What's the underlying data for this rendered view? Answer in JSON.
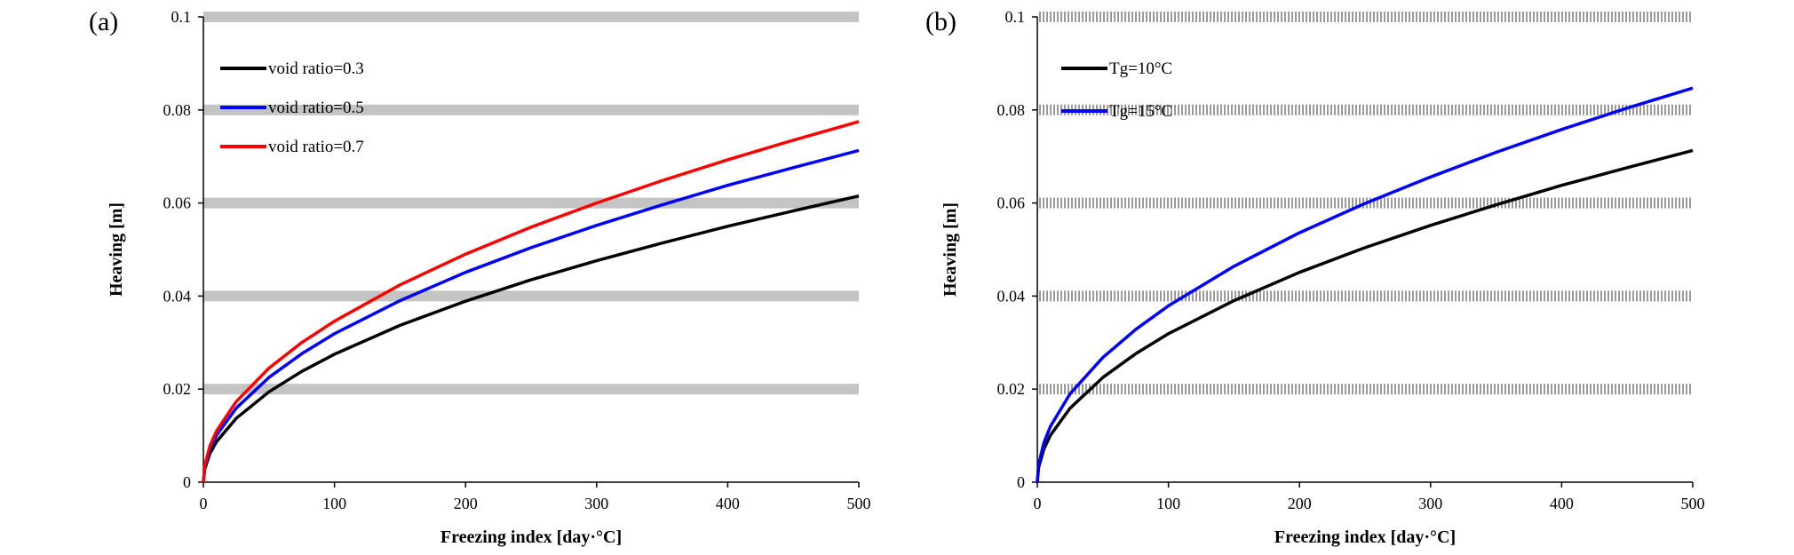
{
  "chart_data": [
    {
      "panel_label": "(a)",
      "type": "line",
      "xlabel": "Freezing index [day·°C]",
      "ylabel": "Heaving [m]",
      "xlim": [
        0,
        500
      ],
      "ylim": [
        0,
        0.1
      ],
      "xticks": [
        0,
        100,
        200,
        300,
        400,
        500
      ],
      "yticks": [
        0,
        0.02,
        0.04,
        0.06,
        0.08,
        0.1
      ],
      "xtick_labels": [
        "0",
        "100",
        "200",
        "300",
        "400",
        "500"
      ],
      "ytick_labels": [
        "0",
        "0.02",
        "0.04",
        "0.06",
        "0.08",
        "0.1"
      ],
      "grid": "horizontal",
      "gridline_style": "solid",
      "legend_position": "top-left",
      "series": [
        {
          "name": "void ratio=0.3",
          "color": "#000000",
          "x": [
            0,
            1,
            5,
            10,
            25,
            50,
            75,
            100,
            150,
            200,
            250,
            300,
            350,
            400,
            450,
            500
          ],
          "y": [
            0,
            0.0028,
            0.0062,
            0.0087,
            0.0137,
            0.0194,
            0.0238,
            0.0275,
            0.0337,
            0.0389,
            0.0435,
            0.0476,
            0.0514,
            0.055,
            0.0583,
            0.0615
          ]
        },
        {
          "name": "void ratio=0.5",
          "color": "#0000ff",
          "x": [
            0,
            1,
            5,
            10,
            25,
            50,
            75,
            100,
            150,
            200,
            250,
            300,
            350,
            400,
            450,
            500
          ],
          "y": [
            0,
            0.0032,
            0.0071,
            0.0101,
            0.0159,
            0.0225,
            0.0276,
            0.0319,
            0.039,
            0.0451,
            0.0504,
            0.0552,
            0.0596,
            0.0638,
            0.0676,
            0.0713
          ]
        },
        {
          "name": "void ratio=0.7",
          "color": "#ff0000",
          "x": [
            0,
            1,
            5,
            10,
            25,
            50,
            75,
            100,
            150,
            200,
            250,
            300,
            350,
            400,
            450,
            500
          ],
          "y": [
            0,
            0.0035,
            0.0078,
            0.011,
            0.0173,
            0.0245,
            0.03,
            0.0346,
            0.0424,
            0.049,
            0.0548,
            0.06,
            0.0648,
            0.0693,
            0.0735,
            0.0775
          ]
        }
      ]
    },
    {
      "panel_label": "(b)",
      "type": "line",
      "xlabel": "Freezing index [day·°C]",
      "ylabel": "Heaving [m]",
      "xlim": [
        0,
        500
      ],
      "ylim": [
        0,
        0.1
      ],
      "xticks": [
        0,
        100,
        200,
        300,
        400,
        500
      ],
      "yticks": [
        0,
        0.02,
        0.04,
        0.06,
        0.08,
        0.1
      ],
      "xtick_labels": [
        "0",
        "100",
        "200",
        "300",
        "400",
        "500"
      ],
      "ytick_labels": [
        "0",
        "0.02",
        "0.04",
        "0.06",
        "0.08",
        "0.1"
      ],
      "grid": "horizontal",
      "gridline_style": "hatched",
      "legend_position": "top-left",
      "series": [
        {
          "name": "Tg=10°C",
          "color": "#000000",
          "x": [
            0,
            1,
            5,
            10,
            25,
            50,
            75,
            100,
            150,
            200,
            250,
            300,
            350,
            400,
            450,
            500
          ],
          "y": [
            0,
            0.0032,
            0.0071,
            0.0101,
            0.0159,
            0.0225,
            0.0276,
            0.0319,
            0.039,
            0.0451,
            0.0504,
            0.0552,
            0.0596,
            0.0638,
            0.0676,
            0.0713
          ]
        },
        {
          "name": "Tg=15°C",
          "color": "#0000ff",
          "x": [
            0,
            1,
            5,
            10,
            25,
            50,
            75,
            100,
            150,
            200,
            250,
            300,
            350,
            400,
            450,
            500
          ],
          "y": [
            0,
            0.0038,
            0.0085,
            0.012,
            0.019,
            0.0268,
            0.0328,
            0.0379,
            0.0464,
            0.0536,
            0.0599,
            0.0656,
            0.0709,
            0.0758,
            0.0804,
            0.0847
          ]
        }
      ]
    }
  ]
}
